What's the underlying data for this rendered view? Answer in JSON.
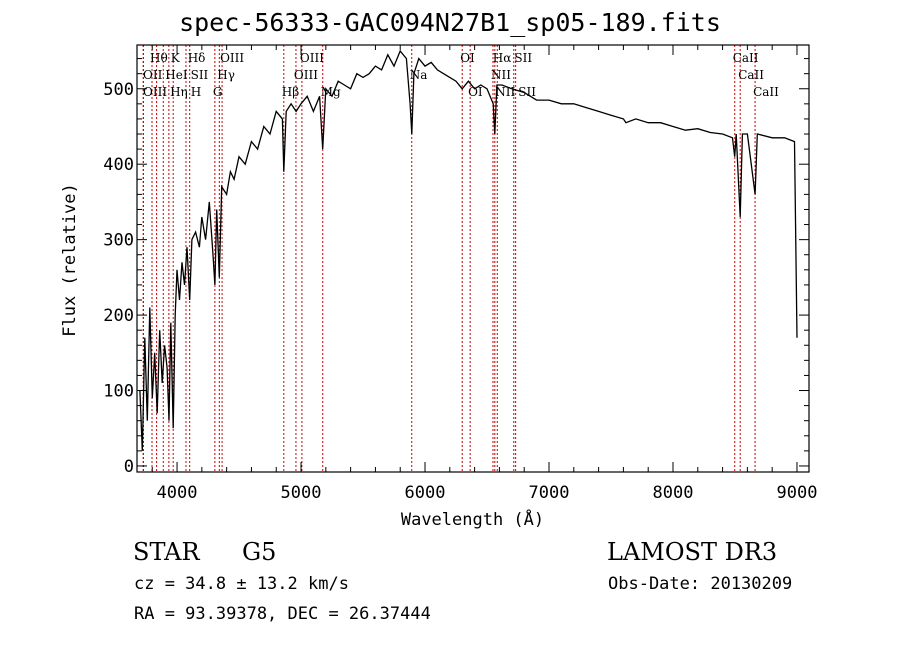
{
  "chart_data": {
    "type": "line",
    "title": "spec-56333-GAC094N27B1_sp05-189.fits",
    "xlabel": "Wavelength (Å)",
    "ylabel": "Flux (relative)",
    "xlim": [
      3677,
      9097
    ],
    "ylim": [
      -8,
      558
    ],
    "xticks": [
      4000,
      5000,
      6000,
      7000,
      8000,
      9000
    ],
    "yticks": [
      0,
      100,
      200,
      300,
      400,
      500
    ],
    "series": [
      {
        "name": "spectrum",
        "x": [
          3700,
          3720,
          3740,
          3760,
          3780,
          3800,
          3820,
          3840,
          3860,
          3880,
          3900,
          3920,
          3935,
          3950,
          3969,
          3985,
          4000,
          4020,
          4040,
          4060,
          4080,
          4102,
          4120,
          4150,
          4180,
          4200,
          4230,
          4260,
          4290,
          4305,
          4320,
          4341,
          4360,
          4400,
          4430,
          4460,
          4500,
          4550,
          4600,
          4650,
          4700,
          4750,
          4800,
          4850,
          4861,
          4880,
          4920,
          4960,
          5000,
          5050,
          5100,
          5150,
          5175,
          5200,
          5250,
          5300,
          5350,
          5400,
          5450,
          5500,
          5550,
          5600,
          5650,
          5700,
          5750,
          5800,
          5850,
          5880,
          5893,
          5910,
          5950,
          6000,
          6050,
          6100,
          6150,
          6200,
          6250,
          6300,
          6350,
          6400,
          6450,
          6500,
          6550,
          6563,
          6580,
          6620,
          6700,
          6800,
          6900,
          7000,
          7100,
          7200,
          7300,
          7400,
          7500,
          7600,
          7620,
          7700,
          7800,
          7900,
          8000,
          8100,
          8200,
          8300,
          8400,
          8480,
          8498,
          8510,
          8542,
          8560,
          8600,
          8662,
          8680,
          8800,
          8900,
          8980,
          9000
        ],
        "y": [
          100,
          20,
          170,
          60,
          210,
          90,
          150,
          70,
          180,
          110,
          160,
          130,
          60,
          190,
          50,
          200,
          260,
          220,
          270,
          240,
          290,
          220,
          300,
          310,
          290,
          330,
          300,
          350,
          280,
          240,
          340,
          250,
          370,
          360,
          390,
          380,
          410,
          400,
          430,
          420,
          450,
          440,
          470,
          460,
          390,
          470,
          480,
          470,
          480,
          490,
          470,
          490,
          420,
          500,
          490,
          510,
          505,
          500,
          520,
          515,
          520,
          530,
          525,
          545,
          530,
          550,
          540,
          480,
          440,
          520,
          540,
          530,
          535,
          525,
          520,
          515,
          510,
          500,
          510,
          500,
          505,
          500,
          480,
          440,
          505,
          505,
          500,
          495,
          485,
          485,
          480,
          480,
          475,
          470,
          465,
          460,
          455,
          460,
          455,
          455,
          450,
          445,
          447,
          442,
          440,
          435,
          410,
          440,
          330,
          440,
          440,
          360,
          440,
          435,
          435,
          430,
          170
        ]
      }
    ],
    "lines": [
      {
        "label": "Hθ",
        "wave": 3798,
        "row": 1
      },
      {
        "label": "K",
        "wave": 3934,
        "row": 1
      },
      {
        "label": "Hδ",
        "wave": 4102,
        "row": 1
      },
      {
        "label": "OIII",
        "wave": 4363,
        "row": 1
      },
      {
        "label": "OIII",
        "wave": 5007,
        "row": 1
      },
      {
        "label": "OI",
        "wave": 6300,
        "row": 1
      },
      {
        "label": "Hα",
        "wave": 6563,
        "row": 1
      },
      {
        "label": "SII",
        "wave": 6716,
        "row": 1
      },
      {
        "label": "CaII",
        "wave": 8498,
        "row": 1
      },
      {
        "label": "OII",
        "wave": 3727,
        "row": 2
      },
      {
        "label": "HeI",
        "wave": 3889,
        "row": 2
      },
      {
        "label": "SII",
        "wave": 4072,
        "row": 2
      },
      {
        "label": "Hγ",
        "wave": 4341,
        "row": 2
      },
      {
        "label": "OIII",
        "wave": 4959,
        "row": 2
      },
      {
        "label": "Na",
        "wave": 5893,
        "row": 2
      },
      {
        "label": "NII",
        "wave": 6548,
        "row": 2
      },
      {
        "label": "CaII",
        "wave": 8542,
        "row": 2
      },
      {
        "label": "OIII",
        "wave": 3729,
        "row": 3
      },
      {
        "label": "Hη",
        "wave": 3835,
        "row": 3
      },
      {
        "label": "H",
        "wave": 3969,
        "row": 3
      },
      {
        "label": "G",
        "wave": 4305,
        "row": 3
      },
      {
        "label": "Hβ",
        "wave": 4861,
        "row": 3
      },
      {
        "label": "Mg",
        "wave": 5175,
        "row": 3
      },
      {
        "label": "OI",
        "wave": 6364,
        "row": 3
      },
      {
        "label": "NII",
        "wave": 6583,
        "row": 3
      },
      {
        "label": "SII",
        "wave": 6731,
        "row": 3
      },
      {
        "label": "CaII",
        "wave": 8662,
        "row": 3
      }
    ],
    "grid": false
  },
  "info": {
    "class": "STAR",
    "subclass": "G5",
    "survey": "LAMOST DR3",
    "cz": "cz = 34.8 ± 13.2 km/s",
    "obs_date": "Obs-Date: 20130209",
    "radec": "RA =  93.39378, DEC =  26.37444"
  },
  "colors": {
    "line_marker": "#cc0000",
    "spectrum": "#000000"
  }
}
